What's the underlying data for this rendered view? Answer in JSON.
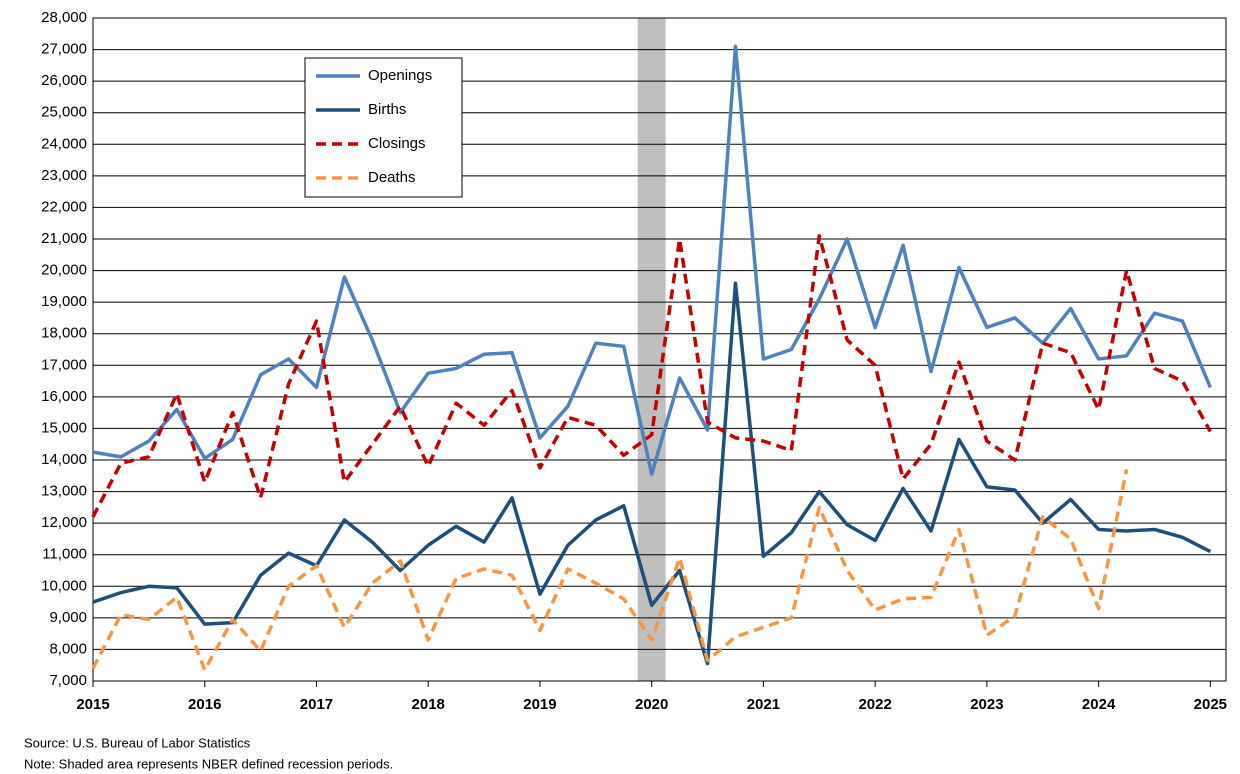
{
  "chart_data": {
    "type": "line",
    "x": [
      2015,
      2015.25,
      2015.5,
      2015.75,
      2016,
      2016.25,
      2016.5,
      2016.75,
      2017,
      2017.25,
      2017.5,
      2017.75,
      2018,
      2018.25,
      2018.5,
      2018.75,
      2019,
      2019.25,
      2019.5,
      2019.75,
      2020,
      2020.25,
      2020.5,
      2020.75,
      2021,
      2021.25,
      2021.5,
      2021.75,
      2022,
      2022.25,
      2022.5,
      2022.75,
      2023,
      2023.25,
      2023.5,
      2023.75,
      2024,
      2024.25,
      2024.5,
      2024.75,
      2025
    ],
    "series": [
      {
        "name": "Openings",
        "color": "#4f81bd",
        "dash": false,
        "values": [
          14250,
          14100,
          14600,
          15600,
          14050,
          14650,
          16700,
          17200,
          16300,
          19800,
          17800,
          15500,
          16750,
          16900,
          17350,
          17400,
          14700,
          15700,
          17700,
          17600,
          13550,
          16600,
          14950,
          27100,
          17200,
          17500,
          19100,
          21000,
          18200,
          20800,
          16800,
          20100,
          18200,
          18500,
          17700,
          18800,
          17200,
          17300,
          18650,
          18400,
          16300
        ]
      },
      {
        "name": "Births",
        "color": "#1f4e79",
        "dash": false,
        "values": [
          9500,
          9800,
          10000,
          9950,
          8800,
          8850,
          10350,
          11050,
          10650,
          12100,
          11400,
          10500,
          11300,
          11900,
          11400,
          12800,
          9750,
          11300,
          12100,
          12550,
          9400,
          10500,
          7550,
          19600,
          10950,
          11700,
          13000,
          11950,
          11450,
          13100,
          11750,
          14650,
          13150,
          13050,
          12000,
          12750,
          11800,
          11750,
          11800,
          11550,
          11100
        ]
      },
      {
        "name": "Closings",
        "color": "#c00000",
        "dash": true,
        "values": [
          12200,
          13900,
          14100,
          16100,
          13300,
          15500,
          12800,
          16400,
          18400,
          13300,
          14500,
          15700,
          13800,
          15800,
          15100,
          16200,
          13750,
          15350,
          15100,
          14150,
          14800,
          21000,
          15200,
          14700,
          14600,
          14300,
          21100,
          17800,
          17000,
          13400,
          14500,
          17100,
          14600,
          14000,
          17700,
          17400,
          15600,
          20000,
          16900,
          16500,
          14900
        ]
      },
      {
        "name": "Deaths",
        "color": "#f79646",
        "dash": true,
        "values": [
          7400,
          9100,
          8950,
          9650,
          7350,
          8950,
          7950,
          10000,
          10650,
          8700,
          10100,
          10800,
          8300,
          10250,
          10550,
          10350,
          8600,
          10550,
          10100,
          9600,
          8300,
          10900,
          7650,
          8400,
          8700,
          9000,
          12500,
          10500,
          9250,
          9600,
          9650,
          11800,
          8450,
          9050,
          12200,
          11500,
          9300,
          13700,
          null,
          null,
          null
        ]
      }
    ],
    "recession": [
      2019.875,
      2020.125
    ],
    "xlim": [
      2015,
      2025.14
    ],
    "xticks": [
      2015,
      2016,
      2017,
      2018,
      2019,
      2020,
      2021,
      2022,
      2023,
      2024,
      2025
    ],
    "ylim": [
      7000,
      28000
    ],
    "yticks": [
      {
        "value": 7000,
        "label": "7,000"
      },
      {
        "value": 8000,
        "label": "8,000"
      },
      {
        "value": 9000,
        "label": "9,000"
      },
      {
        "value": 10000,
        "label": "10,000"
      },
      {
        "value": 11000,
        "label": "11,000"
      },
      {
        "value": 12000,
        "label": "12,000"
      },
      {
        "value": 13000,
        "label": "13,000"
      },
      {
        "value": 14000,
        "label": "14,000"
      },
      {
        "value": 15000,
        "label": "15,000"
      },
      {
        "value": 16000,
        "label": "16,000"
      },
      {
        "value": 17000,
        "label": "17,000"
      },
      {
        "value": 18000,
        "label": "18,000"
      },
      {
        "value": 19000,
        "label": "19,000"
      },
      {
        "value": 20000,
        "label": "20,000"
      },
      {
        "value": 21000,
        "label": "21,000"
      },
      {
        "value": 22000,
        "label": "22,000"
      },
      {
        "value": 23000,
        "label": "23,000"
      },
      {
        "value": 24000,
        "label": "24,000"
      },
      {
        "value": 25000,
        "label": "25,000"
      },
      {
        "value": 26000,
        "label": "26,000"
      },
      {
        "value": 27000,
        "label": "27,000"
      },
      {
        "value": 28000,
        "label": "28,000"
      }
    ],
    "grid": true,
    "source": "Source: U.S. Bureau of Labor Statistics",
    "note": "Note: Shaded area represents NBER defined recession periods."
  }
}
